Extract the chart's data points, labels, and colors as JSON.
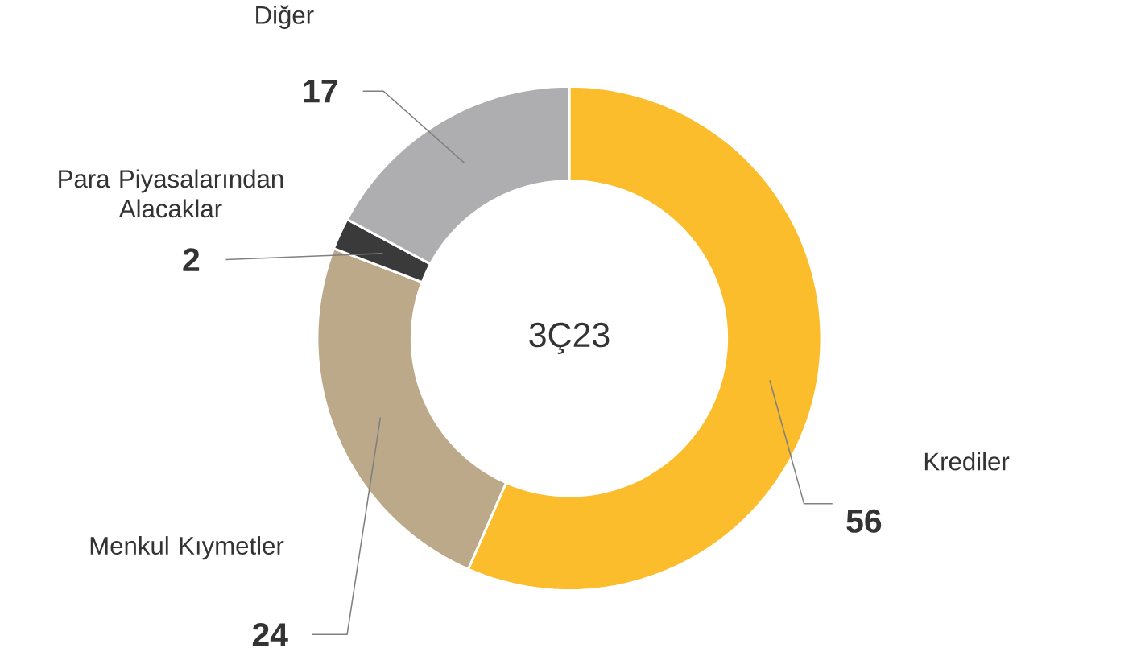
{
  "chart_data": {
    "type": "donut",
    "title": "3Ç23",
    "categories": [
      "Krediler",
      "Menkul Kıymetler",
      "Para Piyasalarından Alacaklar",
      "Diğer"
    ],
    "values": [
      56,
      24,
      2,
      17
    ],
    "colors": [
      "#fbbd2c",
      "#bba98a",
      "#3a3a3a",
      "#aeaeb0"
    ],
    "data_labels": true
  }
}
